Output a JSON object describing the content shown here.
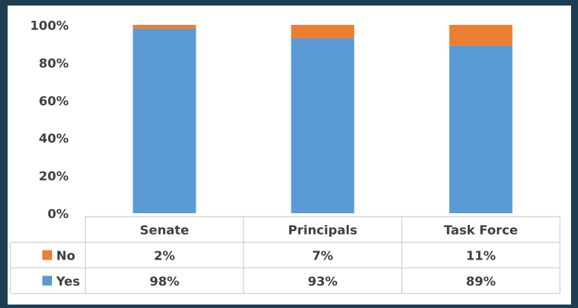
{
  "chart_data": {
    "type": "bar",
    "stacked": true,
    "percent": true,
    "categories": [
      "Senate",
      "Principals",
      "Task Force"
    ],
    "series": [
      {
        "name": "Yes",
        "values": [
          98,
          93,
          89
        ],
        "labels": [
          "98%",
          "93%",
          "89%"
        ],
        "color": "#5b9bd5"
      },
      {
        "name": "No",
        "values": [
          2,
          7,
          11
        ],
        "labels": [
          "2%",
          "7%",
          "11%"
        ],
        "color": "#ed7d31"
      }
    ],
    "ylim": [
      0,
      100
    ],
    "yticks": [
      "0%",
      "20%",
      "40%",
      "60%",
      "80%",
      "100%"
    ],
    "grid": false,
    "legend": "data-table",
    "data_table": true,
    "table_row_order": [
      "No",
      "Yes"
    ]
  }
}
